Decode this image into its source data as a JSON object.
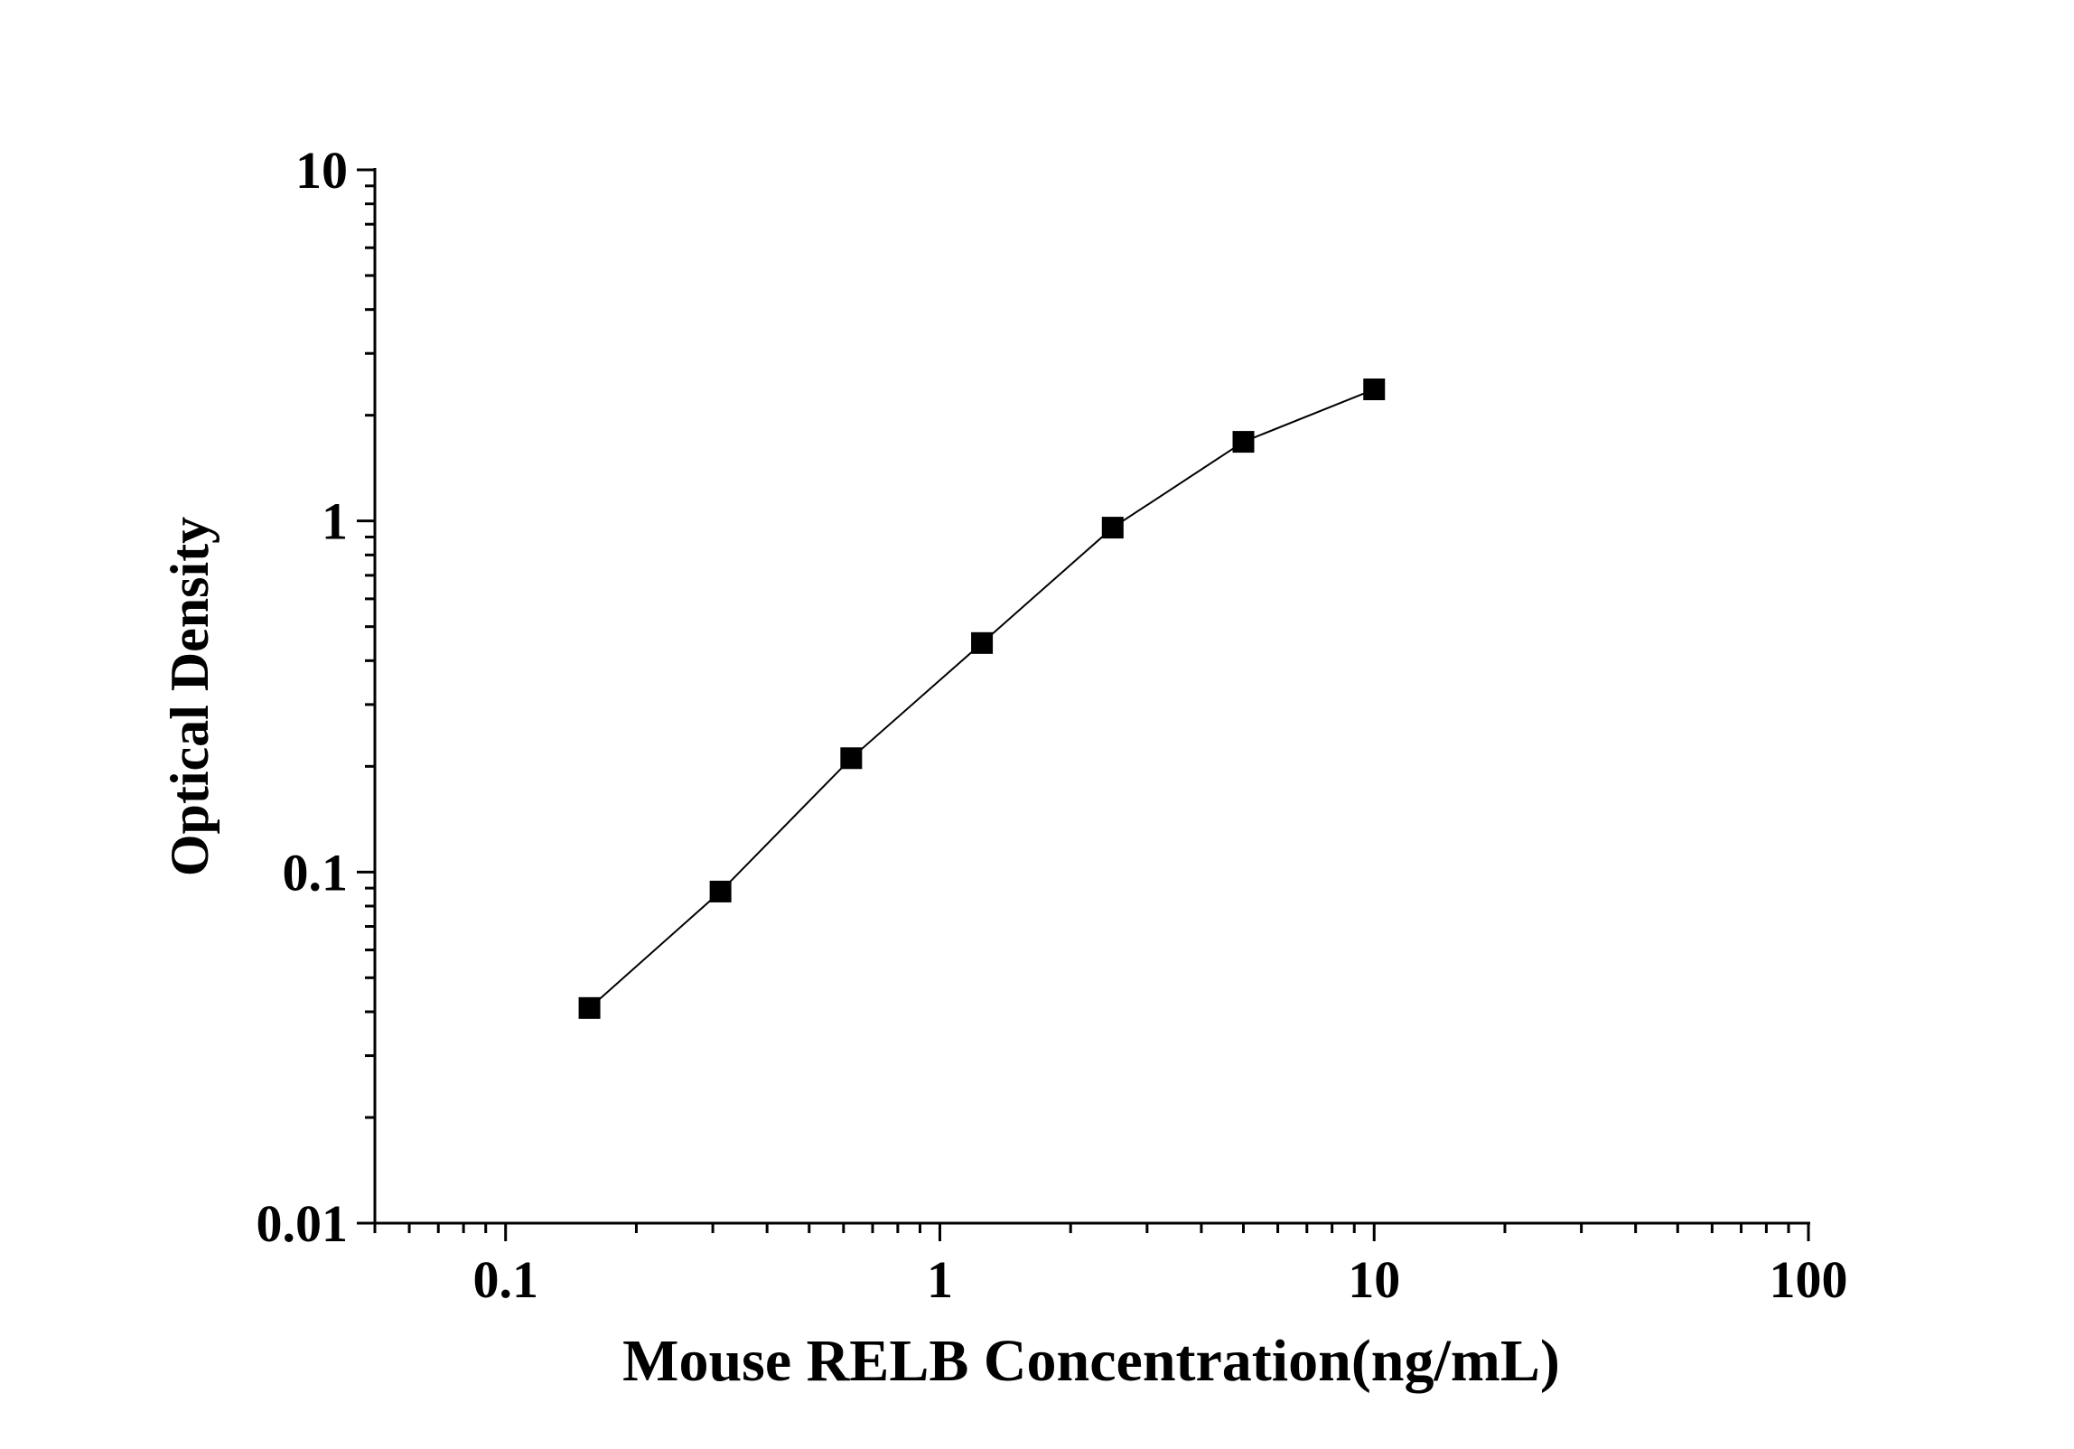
{
  "chart_data": {
    "type": "line",
    "title": "",
    "xlabel": "Mouse RELB Concentration(ng/mL)",
    "ylabel": "Optical Density",
    "x_scale": "log",
    "y_scale": "log",
    "xlim": [
      0.05,
      100
    ],
    "ylim": [
      0.01,
      10
    ],
    "x_ticks": [
      0.1,
      1,
      10,
      100
    ],
    "x_tick_labels": [
      "0.1",
      "1",
      "10",
      "100"
    ],
    "y_ticks": [
      0.01,
      0.1,
      1,
      10
    ],
    "y_tick_labels": [
      "0.01",
      "0.1",
      "1",
      "10"
    ],
    "grid": false,
    "legend": "none",
    "marker": "square",
    "color": "#000000",
    "series": [
      {
        "x": [
          0.156,
          0.3125,
          0.625,
          1.25,
          2.5,
          5,
          10
        ],
        "y": [
          0.041,
          0.088,
          0.211,
          0.449,
          0.957,
          1.68,
          2.37
        ]
      }
    ]
  }
}
